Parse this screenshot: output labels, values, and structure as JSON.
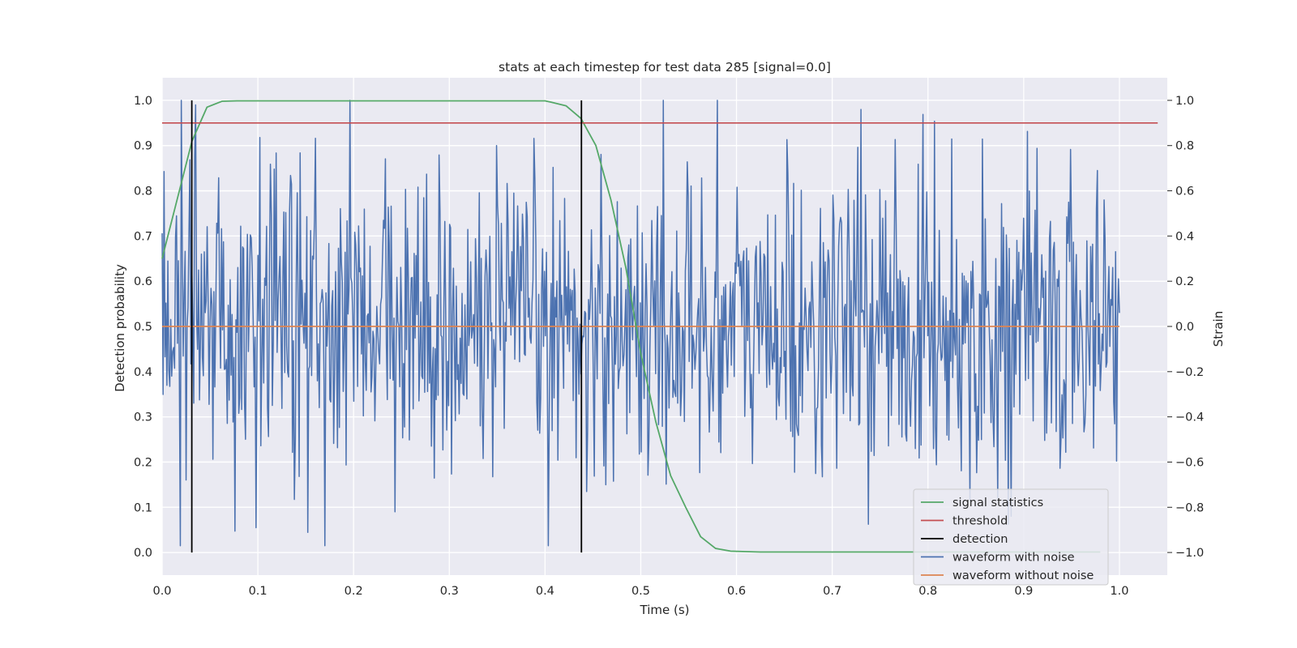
{
  "chart_data": {
    "type": "line",
    "title": "stats at each timestep for test data 285 [signal=0.0]",
    "xlabel": "Time (s)",
    "ylabel": "Detection probability",
    "ylabel_right": "Strain",
    "xlim": [
      0.0,
      1.05
    ],
    "ylim": [
      -0.05,
      1.05
    ],
    "ylim_right": [
      -1.1,
      1.1
    ],
    "x_ticks": [
      "0.0",
      "0.1",
      "0.2",
      "0.3",
      "0.4",
      "0.5",
      "0.6",
      "0.7",
      "0.8",
      "0.9",
      "1.0"
    ],
    "y_ticks": [
      "0.0",
      "0.1",
      "0.2",
      "0.3",
      "0.4",
      "0.5",
      "0.6",
      "0.7",
      "0.8",
      "0.9",
      "1.0"
    ],
    "y_ticks_right": [
      "−1.0",
      "−0.8",
      "−0.6",
      "−0.4",
      "−0.2",
      "0.0",
      "0.2",
      "0.4",
      "0.6",
      "0.8",
      "1.0"
    ],
    "grid": true,
    "legend_position": "lower right",
    "colors": {
      "background": "#eaeaf2",
      "signal_statistics": "#55a868",
      "threshold": "#c44e52",
      "detection": "#000000",
      "waveform_with_noise": "#4c72b0",
      "waveform_without_noise": "#dd8452"
    },
    "series": [
      {
        "name": "signal statistics",
        "axis": "left",
        "x": [
          0.0,
          0.0156,
          0.0312,
          0.0469,
          0.0625,
          0.0781,
          0.1,
          0.2,
          0.3,
          0.4,
          0.4063,
          0.4219,
          0.4375,
          0.4531,
          0.4688,
          0.4844,
          0.5,
          0.5156,
          0.5312,
          0.5469,
          0.5625,
          0.5781,
          0.5938,
          0.6094,
          0.625,
          0.7,
          0.8,
          0.9,
          0.98
        ],
        "y": [
          0.65,
          0.78,
          0.91,
          0.985,
          0.998,
          0.999,
          0.999,
          0.999,
          0.999,
          0.999,
          0.996,
          0.988,
          0.96,
          0.9,
          0.78,
          0.63,
          0.44,
          0.29,
          0.17,
          0.1,
          0.035,
          0.009,
          0.003,
          0.002,
          0.001,
          0.001,
          0.001,
          0.001,
          0.001
        ]
      },
      {
        "name": "threshold",
        "axis": "left",
        "x": [
          0.0,
          1.04
        ],
        "y": [
          0.95,
          0.95
        ]
      },
      {
        "name": "detection",
        "axis": "left",
        "x": [
          0.031,
          0.438
        ],
        "y_range": [
          0.0,
          1.0
        ]
      },
      {
        "name": "waveform with noise",
        "axis": "right",
        "x_range": [
          0.0,
          1.0
        ],
        "points": 1000,
        "mean": 0.0,
        "std": 0.33,
        "min": -0.97,
        "max": 1.0,
        "notable": [
          {
            "x": 0.17,
            "y": -0.97
          },
          {
            "x": 0.58,
            "y": 1.0
          },
          {
            "x": 0.73,
            "y": 0.96
          },
          {
            "x": 0.035,
            "y": 0.98
          }
        ]
      },
      {
        "name": "waveform without noise",
        "axis": "right",
        "x": [
          0.0,
          1.0
        ],
        "y": [
          0.0,
          0.0
        ]
      }
    ]
  }
}
